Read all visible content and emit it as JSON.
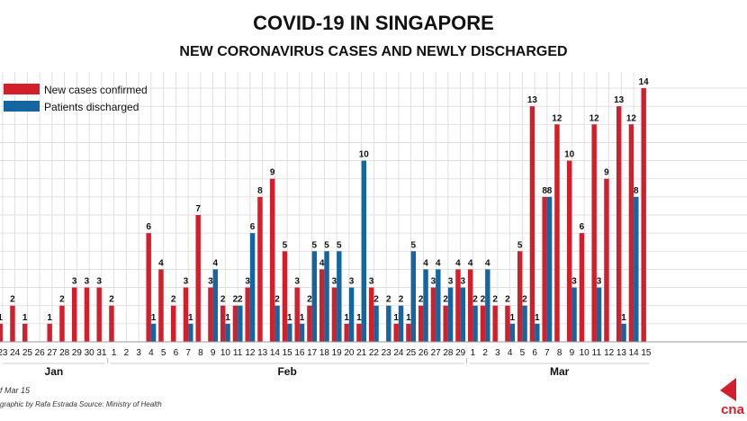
{
  "chart_data": {
    "type": "bar",
    "title": "COVID-19 IN SINGAPORE",
    "subtitle": "NEW CORONAVIRUS CASES AND NEWLY DISCHARGED",
    "legend_position": "top-left",
    "grid": true,
    "ylim": [
      0,
      14
    ],
    "colors": {
      "new": "#d21f2b",
      "discharged": "#1565a0",
      "grid": "#d9d9d9",
      "text": "#111111"
    },
    "series": [
      {
        "name": "New cases confirmed",
        "key": "new"
      },
      {
        "name": "Patients discharged",
        "key": "discharged"
      }
    ],
    "months": [
      {
        "label": "Jan",
        "days": [
          {
            "day": "23",
            "new": 1,
            "dis": 0
          },
          {
            "day": "24",
            "new": 2,
            "dis": 0
          },
          {
            "day": "25",
            "new": 1,
            "dis": 0
          },
          {
            "day": "26",
            "new": 0,
            "dis": 0
          },
          {
            "day": "27",
            "new": 1,
            "dis": 0
          },
          {
            "day": "28",
            "new": 2,
            "dis": 0
          },
          {
            "day": "29",
            "new": 3,
            "dis": 0
          },
          {
            "day": "30",
            "new": 3,
            "dis": 0
          },
          {
            "day": "31",
            "new": 3,
            "dis": 0
          }
        ]
      },
      {
        "label": "Feb",
        "days": [
          {
            "day": "1",
            "new": 2,
            "dis": 0
          },
          {
            "day": "2",
            "new": 0,
            "dis": 0
          },
          {
            "day": "3",
            "new": 0,
            "dis": 0
          },
          {
            "day": "4",
            "new": 6,
            "dis": 1
          },
          {
            "day": "5",
            "new": 4,
            "dis": 0
          },
          {
            "day": "6",
            "new": 2,
            "dis": 0
          },
          {
            "day": "7",
            "new": 3,
            "dis": 1
          },
          {
            "day": "8",
            "new": 7,
            "dis": 0
          },
          {
            "day": "9",
            "new": 3,
            "dis": 4
          },
          {
            "day": "10",
            "new": 2,
            "dis": 1
          },
          {
            "day": "11",
            "new": 2,
            "dis": 2
          },
          {
            "day": "12",
            "new": 3,
            "dis": 6
          },
          {
            "day": "13",
            "new": 8,
            "dis": 0
          },
          {
            "day": "14",
            "new": 9,
            "dis": 2
          },
          {
            "day": "15",
            "new": 5,
            "dis": 1
          },
          {
            "day": "16",
            "new": 3,
            "dis": 1
          },
          {
            "day": "17",
            "new": 2,
            "dis": 5
          },
          {
            "day": "18",
            "new": 4,
            "dis": 5
          },
          {
            "day": "19",
            "new": 3,
            "dis": 5
          },
          {
            "day": "20",
            "new": 1,
            "dis": 3
          },
          {
            "day": "21",
            "new": 1,
            "dis": 10
          },
          {
            "day": "22",
            "new": 3,
            "dis": 2
          },
          {
            "day": "23",
            "new": 0,
            "dis": 2
          },
          {
            "day": "24",
            "new": 1,
            "dis": 2
          },
          {
            "day": "25",
            "new": 1,
            "dis": 5
          },
          {
            "day": "26",
            "new": 2,
            "dis": 4
          },
          {
            "day": "27",
            "new": 3,
            "dis": 4
          },
          {
            "day": "28",
            "new": 2,
            "dis": 3
          },
          {
            "day": "29",
            "new": 4,
            "dis": 3
          }
        ]
      },
      {
        "label": "Mar",
        "days": [
          {
            "day": "1",
            "new": 4,
            "dis": 2
          },
          {
            "day": "2",
            "new": 2,
            "dis": 4
          },
          {
            "day": "3",
            "new": 2,
            "dis": 0
          },
          {
            "day": "4",
            "new": 2,
            "dis": 1
          },
          {
            "day": "5",
            "new": 5,
            "dis": 2
          },
          {
            "day": "6",
            "new": 13,
            "dis": 1
          },
          {
            "day": "7",
            "new": 8,
            "dis": 8
          },
          {
            "day": "8",
            "new": 12,
            "dis": 0
          },
          {
            "day": "9",
            "new": 10,
            "dis": 3
          },
          {
            "day": "10",
            "new": 6,
            "dis": 0
          },
          {
            "day": "11",
            "new": 12,
            "dis": 3
          },
          {
            "day": "12",
            "new": 9,
            "dis": 0
          },
          {
            "day": "13",
            "new": 13,
            "dis": 1
          },
          {
            "day": "14",
            "new": 12,
            "dis": 8
          },
          {
            "day": "15",
            "new": 14,
            "dis": 0
          }
        ]
      }
    ]
  },
  "footer": {
    "note": "f Mar 15",
    "credit": "graphic by Rafa Estrada   Source: Ministry of Health",
    "logo_text": "cna"
  }
}
